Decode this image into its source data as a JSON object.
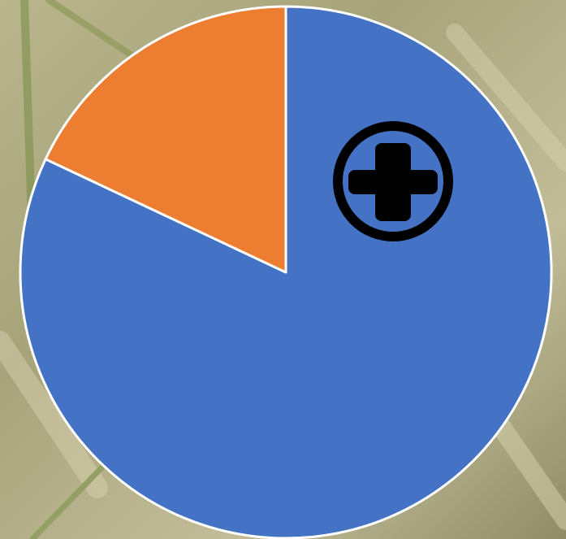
{
  "chart_data": {
    "type": "pie",
    "values": [
      82,
      18
    ],
    "colors": [
      "#4472c4",
      "#ed7d31"
    ],
    "start_angle": 0,
    "direction": "clockwise"
  }
}
